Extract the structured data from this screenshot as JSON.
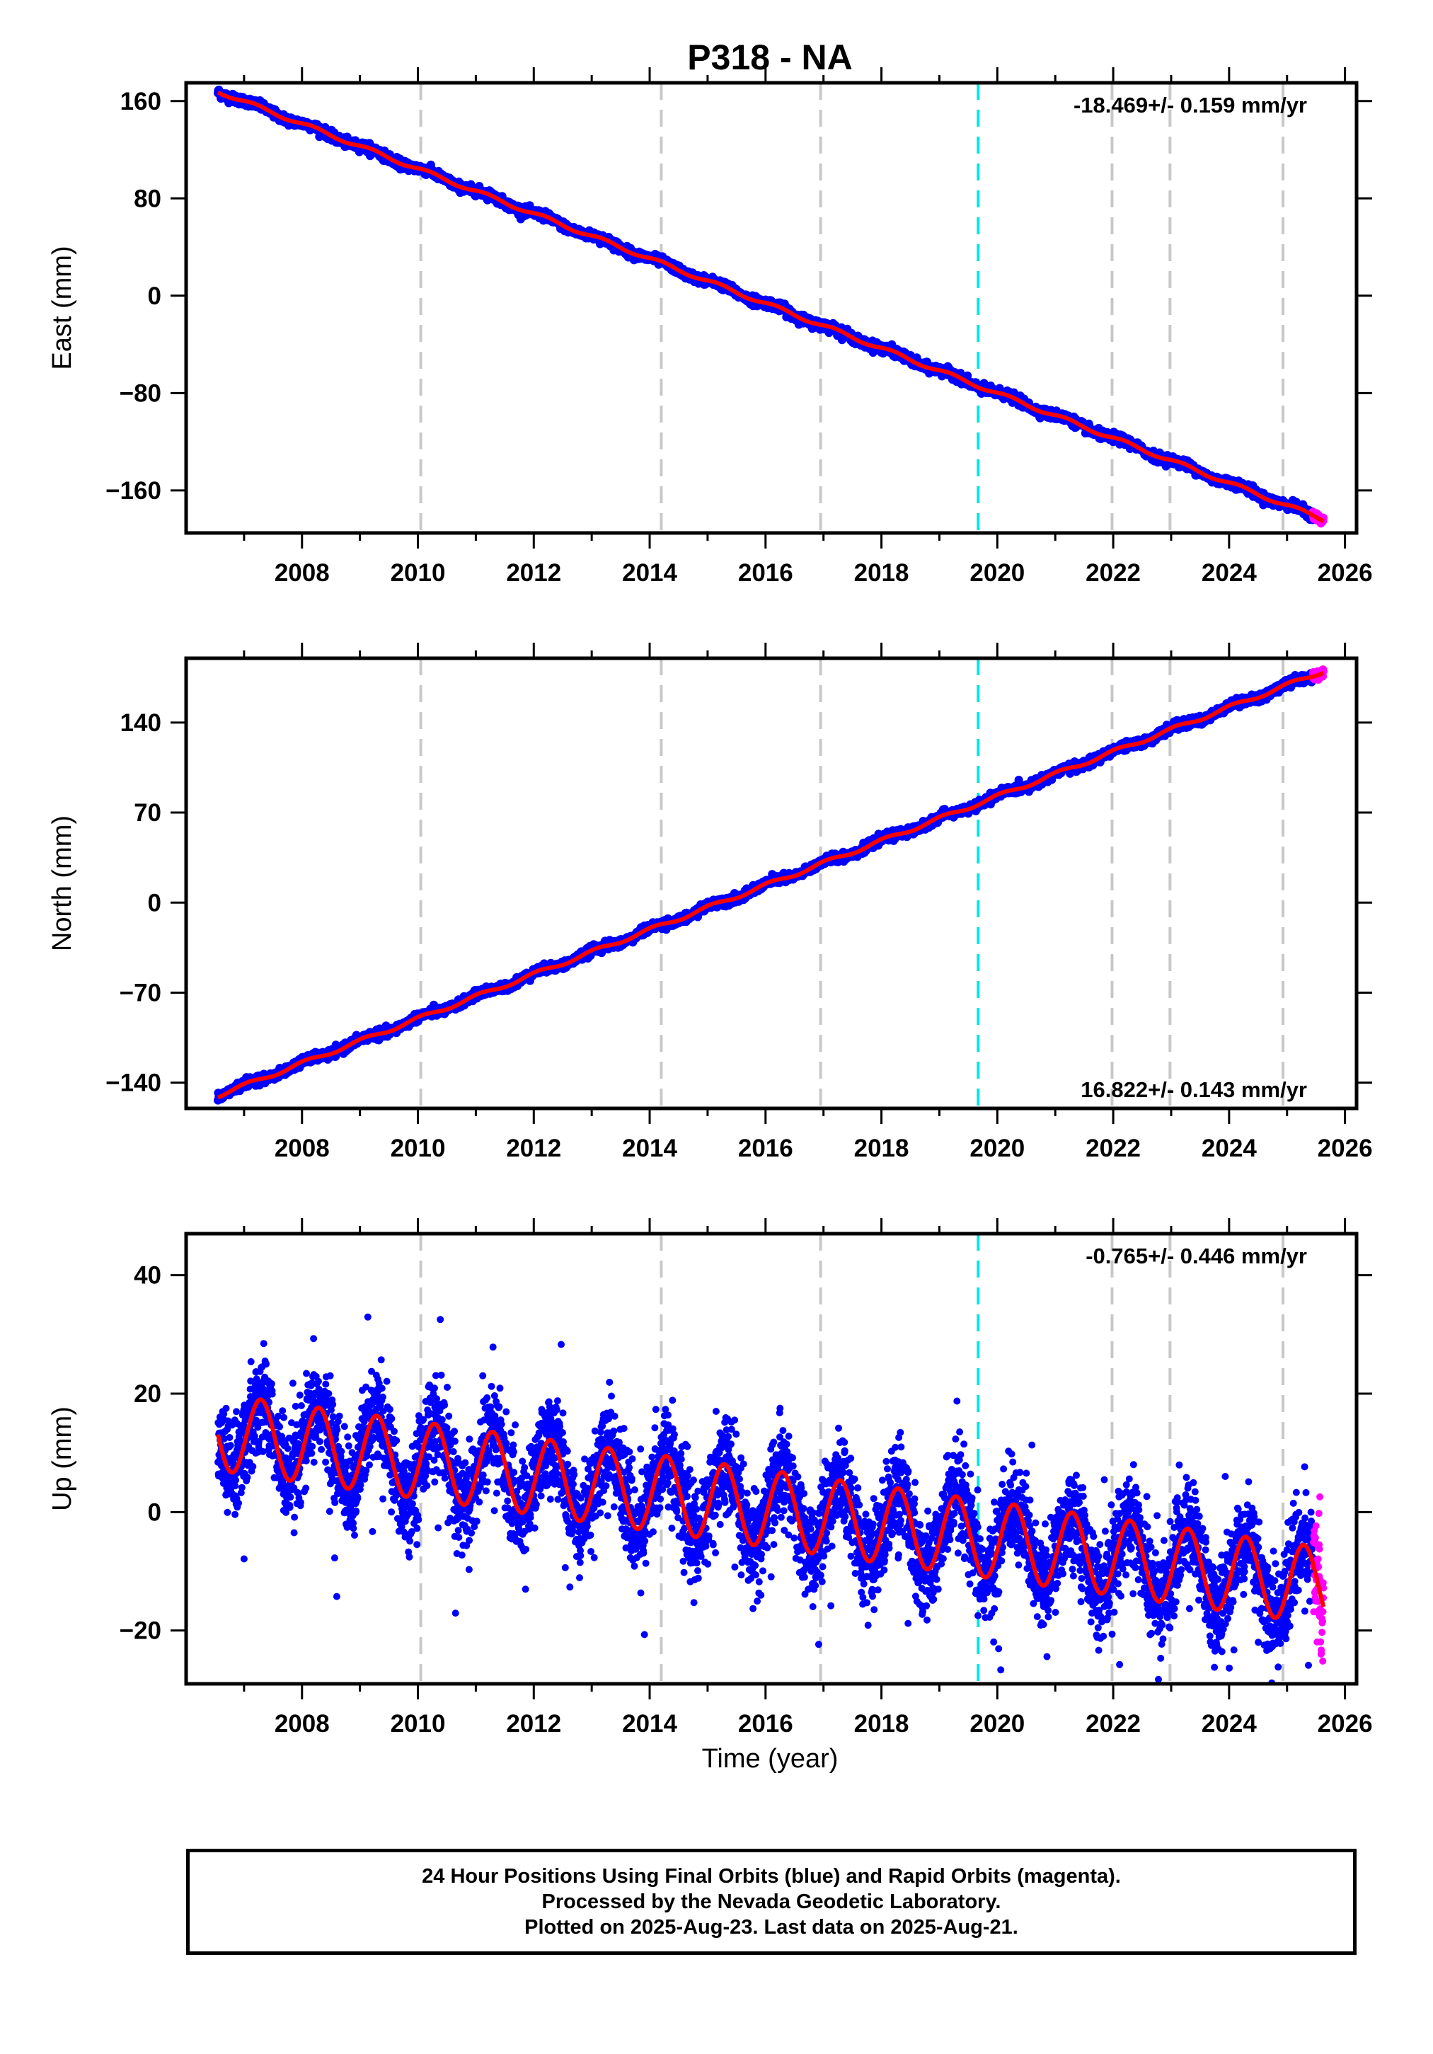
{
  "figure": {
    "title": "P318 - NA",
    "xlabel": "Time (year)",
    "footer": [
      "24 Hour Positions Using Final Orbits (blue) and Rapid Orbits (magenta).",
      "Processed by the Nevada Geodetic Laboratory.",
      "Plotted on 2025-Aug-23. Last data on 2025-Aug-21."
    ],
    "colors": {
      "final_orbits": "#0000ff",
      "rapid_orbits": "#ff00ff",
      "model_fit": "#ff0000",
      "event_line": "#c8c8c8",
      "antenna_change_line": "#00e5e5"
    },
    "marker_lines_years": [
      2010.05,
      2014.2,
      2016.95,
      2021.98,
      2022.98,
      2024.93
    ],
    "cyan_line_year": 2019.67
  },
  "chart_data": [
    {
      "type": "scatter",
      "component": "east",
      "ylabel": "East (mm)",
      "xlim": [
        2006.0,
        2026.2
      ],
      "ylim": [
        -195,
        175
      ],
      "yticks": [
        -160,
        -80,
        0,
        80,
        160
      ],
      "xticks": [
        2008,
        2010,
        2012,
        2014,
        2016,
        2018,
        2020,
        2022,
        2024,
        2026
      ],
      "rate_label": "-18.469+/- 0.159 mm/yr",
      "rate_label_position": "top-right",
      "start_year": 2006.55,
      "end_year": 2025.63,
      "fit": {
        "value_at_start": 168,
        "value_at_end": -184,
        "annual_amplitude": 1.5,
        "phase": 0.3
      },
      "scatter_sd": 1.8,
      "series": [
        {
          "name": "Final Orbits",
          "color": "#0000ff"
        },
        {
          "name": "Rapid Orbits",
          "color": "#ff00ff",
          "year_range": [
            2025.45,
            2025.63
          ]
        },
        {
          "name": "Model",
          "color": "#ff0000"
        }
      ]
    },
    {
      "type": "scatter",
      "component": "north",
      "ylabel": "North (mm)",
      "xlim": [
        2006.0,
        2026.2
      ],
      "ylim": [
        -160,
        190
      ],
      "yticks": [
        -140,
        -70,
        0,
        70,
        140
      ],
      "xticks": [
        2008,
        2010,
        2012,
        2014,
        2016,
        2018,
        2020,
        2022,
        2024,
        2026
      ],
      "rate_label": "16.822+/- 0.143 mm/yr",
      "rate_label_position": "bottom-right",
      "start_year": 2006.55,
      "end_year": 2025.63,
      "fit": {
        "value_at_start": -150,
        "value_at_end": 180,
        "annual_amplitude": 1.5,
        "phase": 1.2
      },
      "scatter_sd": 1.6,
      "series": [
        {
          "name": "Final Orbits",
          "color": "#0000ff"
        },
        {
          "name": "Rapid Orbits",
          "color": "#ff00ff",
          "year_range": [
            2025.45,
            2025.63
          ]
        },
        {
          "name": "Model",
          "color": "#ff0000"
        }
      ]
    },
    {
      "type": "scatter",
      "component": "up",
      "ylabel": "Up (mm)",
      "xlim": [
        2006.0,
        2026.2
      ],
      "ylim": [
        -29,
        47
      ],
      "yticks": [
        -20,
        0,
        20,
        40
      ],
      "xticks": [
        2008,
        2010,
        2012,
        2014,
        2016,
        2018,
        2020,
        2022,
        2024,
        2026
      ],
      "rate_label": "-0.765+/- 0.446 mm/yr",
      "rate_label_position": "top-right",
      "start_year": 2006.55,
      "end_year": 2025.63,
      "fit": {
        "value_at_start": 13.5,
        "value_at_end": -12.5,
        "annual_amplitude": 6.5,
        "phase": -0.25
      },
      "scatter_sd": 4.0,
      "series": [
        {
          "name": "Final Orbits",
          "color": "#0000ff"
        },
        {
          "name": "Rapid Orbits",
          "color": "#ff00ff",
          "year_range": [
            2025.45,
            2025.63
          ]
        },
        {
          "name": "Model",
          "color": "#ff0000"
        }
      ]
    }
  ]
}
